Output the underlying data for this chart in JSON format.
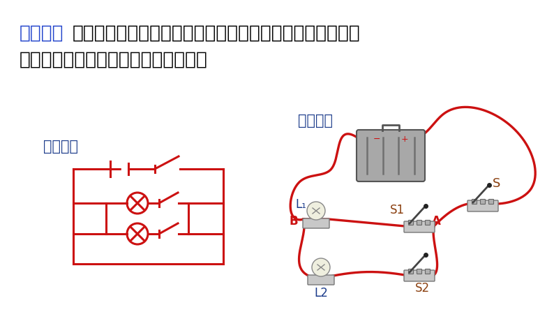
{
  "bg_color": "#ffffff",
  "blue": "#2244cc",
  "red": "#cc1111",
  "dark_blue": "#1a3a8a",
  "brown": "#8b4010",
  "text_line1_blue": "并联电路",
  "text_colon_rest": "：把几个元件的一端连在一起另一端也连在一起，然后把两",
  "text_line2": "端接入电路，这样的连接方式叫并联。",
  "label_circuit": "电路图：",
  "label_real": "实物图：",
  "L1_label": "L₁",
  "L2_label": "L2",
  "S_label": "S",
  "S1_label": "S1",
  "S2_label": "S2",
  "A_label": "A",
  "B_label": "B",
  "font_main": 19,
  "font_label": 15,
  "lw": 2.2,
  "rlw": 2.4
}
